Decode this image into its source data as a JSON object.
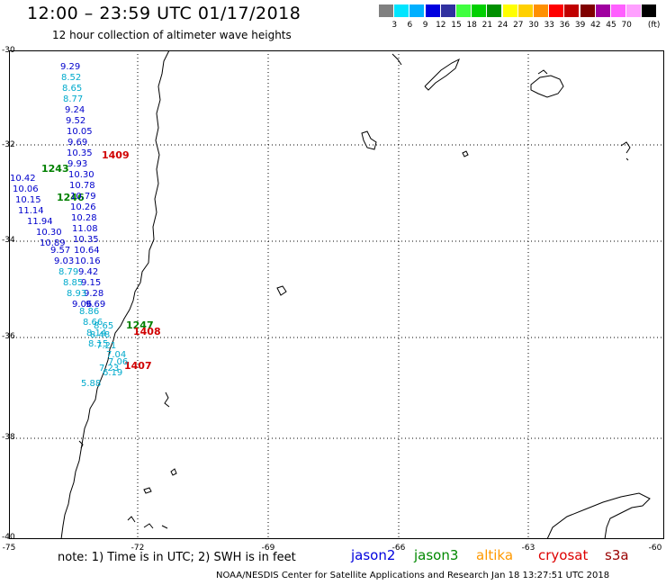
{
  "header": {
    "title": "12:00 – 23:59 UTC 01/17/2018",
    "subtitle": "12 hour collection of altimeter wave heights"
  },
  "legend": {
    "unit": "(ft)",
    "swatches": [
      {
        "color": "#808080",
        "label": ""
      },
      {
        "color": "#00e5ff",
        "label": "3"
      },
      {
        "color": "#00b0ff",
        "label": "6"
      },
      {
        "color": "#0000e0",
        "label": "9"
      },
      {
        "color": "#3030a0",
        "label": "12"
      },
      {
        "color": "#40ff40",
        "label": "15"
      },
      {
        "color": "#00d000",
        "label": "18"
      },
      {
        "color": "#009000",
        "label": "21"
      },
      {
        "color": "#ffff00",
        "label": "24"
      },
      {
        "color": "#ffd000",
        "label": "27"
      },
      {
        "color": "#ff9000",
        "label": "30"
      },
      {
        "color": "#ff0000",
        "label": "33"
      },
      {
        "color": "#c00000",
        "label": "36"
      },
      {
        "color": "#800000",
        "label": "39"
      },
      {
        "color": "#a000a0",
        "label": "42"
      },
      {
        "color": "#ff60ff",
        "label": "45"
      },
      {
        "color": "#ffa0ff",
        "label": "70"
      },
      {
        "color": "#000000",
        "label": ""
      }
    ]
  },
  "axes": {
    "lat_labels": [
      "-30",
      "-32",
      "-34",
      "-36",
      "-38",
      "-40"
    ],
    "lon_labels": [
      "-75",
      "-72",
      "-69",
      "-66",
      "-63",
      "-60"
    ]
  },
  "track_times": [
    {
      "label": "1409",
      "color": "#d00000"
    },
    {
      "label": "1243",
      "color": "#008000"
    },
    {
      "label": "1246",
      "color": "#008000"
    },
    {
      "label": "1247",
      "color": "#008000"
    },
    {
      "label": "1408",
      "color": "#d00000"
    },
    {
      "label": "1407",
      "color": "#d00000"
    }
  ],
  "readings": [
    {
      "v": "9.29",
      "c": "#0000cc"
    },
    {
      "v": "8.52",
      "c": "#00aacc"
    },
    {
      "v": "8.65",
      "c": "#00aacc"
    },
    {
      "v": "8.77",
      "c": "#00aacc"
    },
    {
      "v": "9.24",
      "c": "#0000cc"
    },
    {
      "v": "9.52",
      "c": "#0000cc"
    },
    {
      "v": "10.05",
      "c": "#0000cc"
    },
    {
      "v": "9.69",
      "c": "#0000cc"
    },
    {
      "v": "10.35",
      "c": "#0000cc"
    },
    {
      "v": "9.93",
      "c": "#0000cc"
    },
    {
      "v": "10.30",
      "c": "#0000cc"
    },
    {
      "v": "10.78",
      "c": "#0000cc"
    },
    {
      "v": "10.79",
      "c": "#0000cc"
    },
    {
      "v": "10.26",
      "c": "#0000cc"
    },
    {
      "v": "10.28",
      "c": "#0000cc"
    },
    {
      "v": "11.08",
      "c": "#0000cc"
    },
    {
      "v": "10.35",
      "c": "#0000cc"
    },
    {
      "v": "10.64",
      "c": "#0000cc"
    },
    {
      "v": "10.16",
      "c": "#0000cc"
    },
    {
      "v": "9.42",
      "c": "#0000cc"
    },
    {
      "v": "9.15",
      "c": "#0000cc"
    },
    {
      "v": "9.28",
      "c": "#0000cc"
    },
    {
      "v": "9.69",
      "c": "#0000cc"
    },
    {
      "v": "10.42",
      "c": "#0000cc"
    },
    {
      "v": "10.06",
      "c": "#0000cc"
    },
    {
      "v": "10.15",
      "c": "#0000cc"
    },
    {
      "v": "11.14",
      "c": "#0000cc"
    },
    {
      "v": "11.94",
      "c": "#0000cc"
    },
    {
      "v": "10.30",
      "c": "#0000cc"
    },
    {
      "v": "10.89",
      "c": "#0000cc"
    },
    {
      "v": "9.57",
      "c": "#0000cc"
    },
    {
      "v": "9.03",
      "c": "#0000cc"
    },
    {
      "v": "8.79",
      "c": "#00aacc"
    },
    {
      "v": "8.85",
      "c": "#00aacc"
    },
    {
      "v": "8.93",
      "c": "#00aacc"
    },
    {
      "v": "9.06",
      "c": "#0000cc"
    },
    {
      "v": "8.86",
      "c": "#00aacc"
    },
    {
      "v": "8.66",
      "c": "#00aacc"
    },
    {
      "v": "8.14",
      "c": "#00aacc"
    },
    {
      "v": "8.15",
      "c": "#00aacc"
    },
    {
      "v": "8.48",
      "c": "#00aacc"
    },
    {
      "v": "8.65",
      "c": "#00aacc"
    },
    {
      "v": "7.21",
      "c": "#00aacc"
    },
    {
      "v": "7.04",
      "c": "#00aacc"
    },
    {
      "v": "7.06",
      "c": "#00aacc"
    },
    {
      "v": "7.23",
      "c": "#00aacc"
    },
    {
      "v": "6.19",
      "c": "#00aacc"
    },
    {
      "v": "5.88",
      "c": "#00aacc"
    }
  ],
  "footer": {
    "note": "note:  1) Time is in UTC;  2) SWH is in feet",
    "satellites": [
      {
        "name": "jason2",
        "color": "#0000dd"
      },
      {
        "name": "jason3",
        "color": "#008800"
      },
      {
        "name": "altika",
        "color": "#ff9900"
      },
      {
        "name": "cryosat",
        "color": "#dd0000"
      },
      {
        "name": "s3a",
        "color": "#990000"
      }
    ],
    "credit": "NOAA/NESDIS Center for Satellite Applications and Research    Jan 18 13:27:51 UTC 2018"
  }
}
